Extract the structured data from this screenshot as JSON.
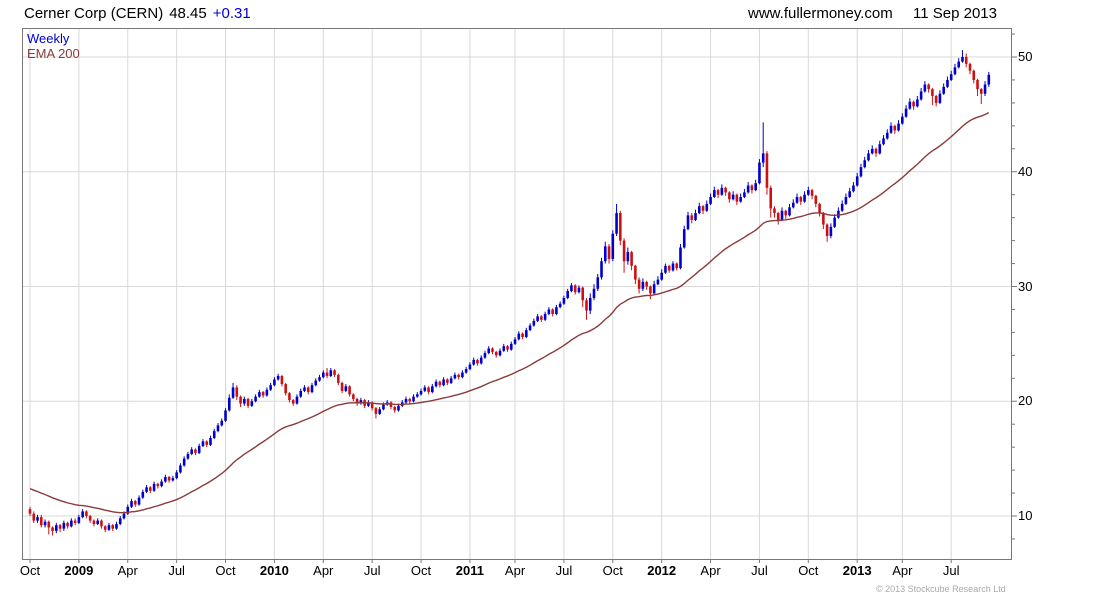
{
  "header": {
    "name": "Cerner Corp (CERN)",
    "price": "48.45",
    "change": "+0.31",
    "website": "www.fullermoney.com",
    "date": "11 Sep 2013"
  },
  "legend": {
    "weekly": "Weekly",
    "ema": "EMA 200"
  },
  "footer": {
    "copyright": "© 2013 Stockcube Research Ltd"
  },
  "colors": {
    "up": "#0000cd",
    "down": "#cc1111",
    "ema": "#8b3a3a",
    "grid": "#d8d8d8",
    "axis": "#777777",
    "accent_blue": "#0000cd",
    "copyright_gray": "#a9a9a9"
  },
  "chart_data": {
    "type": "candlestick",
    "title": "Cerner Corp (CERN)",
    "timeframe": "weekly",
    "range": "Oct 2008 - Sep 2013",
    "last_close": 48.45,
    "change": 0.31,
    "series": [
      {
        "name": "Weekly",
        "style": "candlestick"
      },
      {
        "name": "EMA 200",
        "style": "line"
      }
    ],
    "ylim": [
      6,
      52.5
    ],
    "y_ticks": [
      10,
      20,
      30,
      40,
      50
    ],
    "y_minor_step": 2,
    "ema_period_days": 200,
    "ema_seed": 12.5,
    "x_tick_labels": [
      "Oct",
      "2009",
      "Apr",
      "Jul",
      "Oct",
      "2010",
      "Apr",
      "Jul",
      "Oct",
      "2011",
      "Apr",
      "Jul",
      "Oct",
      "2012",
      "Apr",
      "Jul",
      "Oct",
      "2013",
      "Apr",
      "Jul"
    ],
    "x_tick_weeks": [
      0,
      13,
      26,
      39,
      52,
      65,
      78,
      91,
      104,
      117,
      129,
      142,
      155,
      168,
      181,
      194,
      207,
      220,
      232,
      245
    ],
    "candles": [
      [
        10.6,
        10.8,
        10.0,
        10.2
      ],
      [
        10.2,
        10.4,
        9.4,
        9.6
      ],
      [
        9.6,
        10.1,
        9.4,
        9.9
      ],
      [
        9.9,
        10.1,
        9.0,
        9.2
      ],
      [
        9.2,
        9.7,
        9.0,
        9.5
      ],
      [
        9.5,
        9.6,
        8.4,
        9.0
      ],
      [
        9.0,
        9.1,
        8.3,
        8.7
      ],
      [
        8.7,
        9.4,
        8.5,
        9.2
      ],
      [
        9.2,
        9.3,
        8.6,
        8.9
      ],
      [
        8.9,
        9.6,
        8.7,
        9.4
      ],
      [
        9.4,
        9.5,
        8.9,
        9.1
      ],
      [
        9.1,
        9.8,
        9.0,
        9.6
      ],
      [
        9.6,
        9.8,
        9.2,
        9.4
      ],
      [
        9.4,
        10.1,
        9.3,
        9.9
      ],
      [
        9.9,
        10.6,
        9.8,
        10.4
      ],
      [
        10.4,
        10.5,
        9.8,
        10.0
      ],
      [
        10.0,
        10.1,
        9.4,
        9.6
      ],
      [
        9.6,
        9.7,
        9.1,
        9.3
      ],
      [
        9.3,
        9.8,
        9.2,
        9.6
      ],
      [
        9.6,
        9.7,
        8.9,
        9.1
      ],
      [
        9.1,
        9.2,
        8.6,
        8.8
      ],
      [
        8.8,
        9.4,
        8.7,
        9.2
      ],
      [
        9.2,
        9.3,
        8.7,
        8.9
      ],
      [
        8.9,
        9.5,
        8.8,
        9.3
      ],
      [
        9.3,
        10.0,
        9.2,
        9.8
      ],
      [
        9.8,
        10.4,
        9.7,
        10.2
      ],
      [
        10.2,
        11.0,
        10.1,
        10.8
      ],
      [
        10.8,
        11.5,
        10.7,
        11.3
      ],
      [
        11.3,
        11.4,
        10.8,
        11.0
      ],
      [
        11.0,
        11.8,
        10.9,
        11.6
      ],
      [
        11.6,
        12.3,
        11.5,
        12.1
      ],
      [
        12.1,
        12.7,
        12.0,
        12.5
      ],
      [
        12.5,
        12.6,
        12.0,
        12.2
      ],
      [
        12.2,
        13.0,
        12.1,
        12.8
      ],
      [
        12.8,
        12.9,
        12.4,
        12.6
      ],
      [
        12.6,
        13.2,
        12.5,
        13.0
      ],
      [
        13.0,
        13.6,
        12.9,
        13.4
      ],
      [
        13.4,
        13.5,
        12.9,
        13.1
      ],
      [
        13.1,
        13.5,
        13.0,
        13.3
      ],
      [
        13.3,
        14.0,
        13.2,
        13.8
      ],
      [
        13.8,
        14.6,
        13.7,
        14.4
      ],
      [
        14.4,
        15.2,
        14.3,
        15.0
      ],
      [
        15.0,
        15.6,
        14.9,
        15.4
      ],
      [
        15.4,
        16.0,
        15.3,
        15.8
      ],
      [
        15.8,
        15.9,
        15.3,
        15.5
      ],
      [
        15.5,
        16.3,
        15.4,
        16.1
      ],
      [
        16.1,
        16.7,
        16.0,
        16.5
      ],
      [
        16.5,
        16.6,
        16.0,
        16.2
      ],
      [
        16.2,
        17.0,
        16.1,
        16.8
      ],
      [
        16.8,
        17.6,
        16.7,
        17.4
      ],
      [
        17.4,
        18.1,
        17.3,
        17.9
      ],
      [
        17.9,
        18.5,
        17.8,
        18.3
      ],
      [
        18.3,
        19.4,
        18.2,
        19.2
      ],
      [
        19.2,
        20.6,
        19.1,
        20.3
      ],
      [
        20.3,
        21.6,
        20.2,
        21.2
      ],
      [
        21.2,
        21.4,
        20.1,
        20.4
      ],
      [
        20.4,
        20.5,
        19.5,
        19.8
      ],
      [
        19.8,
        20.4,
        19.6,
        20.2
      ],
      [
        20.2,
        20.3,
        19.4,
        19.6
      ],
      [
        19.6,
        20.2,
        19.5,
        20.0
      ],
      [
        20.0,
        20.6,
        19.9,
        20.4
      ],
      [
        20.4,
        21.0,
        20.3,
        20.8
      ],
      [
        20.8,
        20.9,
        20.3,
        20.5
      ],
      [
        20.5,
        21.2,
        20.4,
        21.0
      ],
      [
        21.0,
        21.6,
        20.9,
        21.4
      ],
      [
        21.4,
        22.1,
        21.3,
        21.9
      ],
      [
        21.9,
        22.4,
        21.8,
        22.2
      ],
      [
        22.2,
        22.3,
        21.3,
        21.5
      ],
      [
        21.5,
        21.6,
        20.5,
        20.7
      ],
      [
        20.7,
        20.8,
        19.9,
        20.1
      ],
      [
        20.1,
        20.2,
        19.6,
        19.8
      ],
      [
        19.8,
        20.6,
        19.7,
        20.4
      ],
      [
        20.4,
        21.1,
        20.3,
        20.9
      ],
      [
        20.9,
        21.4,
        20.8,
        21.2
      ],
      [
        21.2,
        21.3,
        20.6,
        20.8
      ],
      [
        20.8,
        21.6,
        20.7,
        21.4
      ],
      [
        21.4,
        22.0,
        21.3,
        21.8
      ],
      [
        21.8,
        22.3,
        21.7,
        22.1
      ],
      [
        22.1,
        22.7,
        22.0,
        22.5
      ],
      [
        22.5,
        22.9,
        22.0,
        22.2
      ],
      [
        22.2,
        22.9,
        22.1,
        22.7
      ],
      [
        22.7,
        22.8,
        22.1,
        22.3
      ],
      [
        22.3,
        22.4,
        21.4,
        21.6
      ],
      [
        21.6,
        21.7,
        20.7,
        20.9
      ],
      [
        20.9,
        21.5,
        20.8,
        21.3
      ],
      [
        21.3,
        21.4,
        20.4,
        20.6
      ],
      [
        20.6,
        20.7,
        20.0,
        20.2
      ],
      [
        20.2,
        20.3,
        19.6,
        19.8
      ],
      [
        19.8,
        20.3,
        19.7,
        20.1
      ],
      [
        20.1,
        20.2,
        19.4,
        19.6
      ],
      [
        19.6,
        20.1,
        19.5,
        19.9
      ],
      [
        19.9,
        20.0,
        19.2,
        19.4
      ],
      [
        19.4,
        19.5,
        18.5,
        18.9
      ],
      [
        18.9,
        19.5,
        18.8,
        19.3
      ],
      [
        19.3,
        19.9,
        19.2,
        19.7
      ],
      [
        19.7,
        20.1,
        19.6,
        19.9
      ],
      [
        19.9,
        20.0,
        19.3,
        19.5
      ],
      [
        19.5,
        19.6,
        19.0,
        19.2
      ],
      [
        19.2,
        19.8,
        19.1,
        19.6
      ],
      [
        19.6,
        20.1,
        19.5,
        19.9
      ],
      [
        19.9,
        20.4,
        19.8,
        20.2
      ],
      [
        20.2,
        20.3,
        19.8,
        20.0
      ],
      [
        20.0,
        20.6,
        19.9,
        20.4
      ],
      [
        20.4,
        20.8,
        20.3,
        20.6
      ],
      [
        20.6,
        21.1,
        20.5,
        20.9
      ],
      [
        20.9,
        21.4,
        20.8,
        21.2
      ],
      [
        21.2,
        21.3,
        20.6,
        20.8
      ],
      [
        20.8,
        21.5,
        20.7,
        21.3
      ],
      [
        21.3,
        21.9,
        21.2,
        21.7
      ],
      [
        21.7,
        21.8,
        21.2,
        21.4
      ],
      [
        21.4,
        22.1,
        21.3,
        21.9
      ],
      [
        21.9,
        22.0,
        21.4,
        21.6
      ],
      [
        21.6,
        22.2,
        21.5,
        22.0
      ],
      [
        22.0,
        22.5,
        21.9,
        22.3
      ],
      [
        22.3,
        22.4,
        21.9,
        22.1
      ],
      [
        22.1,
        22.7,
        22.0,
        22.5
      ],
      [
        22.5,
        23.0,
        22.4,
        22.8
      ],
      [
        22.8,
        23.4,
        22.7,
        23.2
      ],
      [
        23.2,
        23.8,
        23.1,
        23.6
      ],
      [
        23.6,
        23.7,
        23.1,
        23.3
      ],
      [
        23.3,
        24.0,
        23.2,
        23.8
      ],
      [
        23.8,
        24.4,
        23.7,
        24.2
      ],
      [
        24.2,
        24.8,
        24.1,
        24.6
      ],
      [
        24.6,
        24.7,
        24.1,
        24.3
      ],
      [
        24.3,
        24.4,
        23.8,
        24.0
      ],
      [
        24.0,
        24.6,
        23.9,
        24.4
      ],
      [
        24.4,
        25.0,
        24.3,
        24.8
      ],
      [
        24.8,
        24.9,
        24.3,
        24.5
      ],
      [
        24.5,
        25.2,
        24.4,
        25.0
      ],
      [
        25.0,
        25.6,
        24.9,
        25.4
      ],
      [
        25.4,
        26.1,
        25.3,
        25.9
      ],
      [
        25.9,
        26.0,
        25.4,
        25.6
      ],
      [
        25.6,
        26.4,
        25.5,
        26.2
      ],
      [
        26.2,
        26.8,
        26.1,
        26.6
      ],
      [
        26.6,
        27.2,
        26.5,
        27.0
      ],
      [
        27.0,
        27.6,
        26.9,
        27.4
      ],
      [
        27.4,
        27.5,
        26.9,
        27.1
      ],
      [
        27.1,
        27.8,
        27.0,
        27.6
      ],
      [
        27.6,
        28.2,
        27.5,
        28.0
      ],
      [
        28.0,
        28.1,
        27.4,
        27.6
      ],
      [
        27.6,
        28.4,
        27.5,
        28.2
      ],
      [
        28.2,
        28.7,
        28.1,
        28.5
      ],
      [
        28.5,
        29.2,
        28.4,
        29.0
      ],
      [
        29.0,
        29.8,
        28.9,
        29.6
      ],
      [
        29.6,
        30.3,
        29.5,
        30.1
      ],
      [
        30.1,
        30.2,
        29.3,
        29.5
      ],
      [
        29.5,
        30.1,
        29.4,
        29.9
      ],
      [
        29.9,
        30.0,
        28.2,
        28.8
      ],
      [
        28.8,
        29.0,
        27.1,
        27.9
      ],
      [
        27.9,
        29.4,
        27.6,
        29.0
      ],
      [
        29.0,
        30.2,
        28.8,
        29.8
      ],
      [
        29.8,
        31.1,
        29.6,
        30.8
      ],
      [
        30.8,
        32.5,
        30.6,
        32.2
      ],
      [
        32.2,
        33.9,
        32.0,
        33.5
      ],
      [
        33.5,
        33.7,
        32.0,
        32.4
      ],
      [
        32.4,
        34.9,
        32.2,
        34.6
      ],
      [
        34.6,
        37.2,
        34.4,
        36.4
      ],
      [
        36.4,
        36.6,
        33.6,
        34.0
      ],
      [
        34.0,
        34.2,
        31.2,
        32.2
      ],
      [
        32.2,
        33.4,
        31.9,
        33.0
      ],
      [
        33.0,
        33.1,
        31.4,
        31.8
      ],
      [
        31.8,
        31.9,
        30.2,
        30.6
      ],
      [
        30.6,
        30.8,
        29.4,
        29.8
      ],
      [
        29.8,
        30.7,
        29.6,
        30.4
      ],
      [
        30.4,
        30.5,
        29.7,
        30.0
      ],
      [
        30.0,
        30.1,
        28.9,
        29.4
      ],
      [
        29.4,
        30.5,
        29.3,
        30.2
      ],
      [
        30.2,
        30.9,
        30.1,
        30.6
      ],
      [
        30.6,
        31.5,
        30.5,
        31.2
      ],
      [
        31.2,
        32.0,
        31.1,
        31.8
      ],
      [
        31.8,
        31.9,
        31.2,
        31.4
      ],
      [
        31.4,
        32.2,
        31.3,
        32.0
      ],
      [
        32.0,
        32.1,
        31.4,
        31.6
      ],
      [
        31.6,
        33.7,
        31.5,
        33.4
      ],
      [
        33.4,
        35.3,
        33.3,
        35.0
      ],
      [
        35.0,
        36.5,
        34.9,
        36.2
      ],
      [
        36.2,
        36.4,
        35.5,
        35.8
      ],
      [
        35.8,
        36.7,
        35.7,
        36.4
      ],
      [
        36.4,
        37.3,
        36.3,
        37.0
      ],
      [
        37.0,
        37.1,
        36.3,
        36.6
      ],
      [
        36.6,
        37.5,
        36.5,
        37.2
      ],
      [
        37.2,
        38.1,
        37.1,
        37.8
      ],
      [
        37.8,
        38.7,
        37.7,
        38.4
      ],
      [
        38.4,
        38.5,
        37.7,
        38.0
      ],
      [
        38.0,
        38.9,
        37.9,
        38.6
      ],
      [
        38.6,
        38.7,
        37.9,
        38.2
      ],
      [
        38.2,
        38.3,
        37.3,
        37.6
      ],
      [
        37.6,
        38.3,
        37.5,
        38.0
      ],
      [
        38.0,
        38.1,
        37.1,
        37.4
      ],
      [
        37.4,
        38.1,
        37.3,
        37.8
      ],
      [
        37.8,
        38.5,
        37.7,
        38.2
      ],
      [
        38.2,
        39.1,
        38.1,
        38.8
      ],
      [
        38.8,
        38.9,
        38.1,
        38.4
      ],
      [
        38.4,
        39.3,
        38.3,
        39.0
      ],
      [
        39.0,
        41.1,
        38.9,
        40.8
      ],
      [
        40.8,
        44.3,
        40.4,
        41.6
      ],
      [
        41.6,
        41.8,
        38.0,
        38.6
      ],
      [
        38.6,
        38.8,
        36.0,
        36.8
      ],
      [
        36.8,
        37.0,
        36.0,
        36.4
      ],
      [
        36.4,
        36.5,
        35.4,
        35.8
      ],
      [
        35.8,
        36.9,
        35.7,
        36.6
      ],
      [
        36.6,
        36.7,
        35.9,
        36.2
      ],
      [
        36.2,
        37.2,
        36.1,
        36.9
      ],
      [
        36.9,
        37.6,
        36.8,
        37.3
      ],
      [
        37.3,
        38.1,
        37.2,
        37.8
      ],
      [
        37.8,
        37.9,
        37.1,
        37.4
      ],
      [
        37.4,
        38.3,
        37.3,
        38.0
      ],
      [
        38.0,
        38.7,
        37.9,
        38.4
      ],
      [
        38.4,
        38.5,
        37.6,
        37.9
      ],
      [
        37.9,
        38.0,
        36.9,
        37.2
      ],
      [
        37.2,
        37.3,
        36.1,
        36.4
      ],
      [
        36.4,
        36.5,
        35.0,
        35.4
      ],
      [
        35.4,
        35.5,
        33.9,
        34.4
      ],
      [
        34.4,
        35.5,
        34.2,
        35.2
      ],
      [
        35.2,
        36.3,
        35.1,
        36.0
      ],
      [
        36.0,
        36.9,
        35.9,
        36.6
      ],
      [
        36.6,
        37.5,
        36.5,
        37.2
      ],
      [
        37.2,
        38.1,
        37.1,
        37.8
      ],
      [
        37.8,
        38.6,
        37.7,
        38.3
      ],
      [
        38.3,
        39.1,
        38.2,
        38.8
      ],
      [
        38.8,
        39.9,
        38.7,
        39.6
      ],
      [
        39.6,
        40.7,
        39.5,
        40.4
      ],
      [
        40.4,
        41.3,
        40.3,
        41.0
      ],
      [
        41.0,
        41.9,
        40.9,
        41.6
      ],
      [
        41.6,
        42.3,
        41.5,
        42.0
      ],
      [
        42.0,
        42.1,
        41.3,
        41.6
      ],
      [
        41.6,
        42.7,
        41.5,
        42.4
      ],
      [
        42.4,
        43.2,
        42.3,
        42.9
      ],
      [
        42.9,
        43.7,
        42.8,
        43.4
      ],
      [
        43.4,
        44.3,
        43.3,
        44.0
      ],
      [
        44.0,
        44.1,
        43.3,
        43.6
      ],
      [
        43.6,
        44.5,
        43.5,
        44.2
      ],
      [
        44.2,
        45.1,
        44.1,
        44.8
      ],
      [
        44.8,
        45.8,
        44.7,
        45.5
      ],
      [
        45.5,
        46.4,
        45.4,
        46.1
      ],
      [
        46.1,
        46.2,
        45.4,
        45.7
      ],
      [
        45.7,
        46.6,
        45.6,
        46.3
      ],
      [
        46.3,
        47.3,
        46.2,
        47.0
      ],
      [
        47.0,
        47.9,
        46.9,
        47.6
      ],
      [
        47.6,
        47.7,
        46.9,
        47.2
      ],
      [
        47.2,
        47.3,
        45.8,
        46.6
      ],
      [
        46.6,
        46.7,
        45.7,
        46.0
      ],
      [
        46.0,
        47.1,
        45.9,
        46.8
      ],
      [
        46.8,
        47.7,
        46.7,
        47.4
      ],
      [
        47.4,
        48.3,
        47.3,
        48.0
      ],
      [
        48.0,
        48.8,
        47.9,
        48.5
      ],
      [
        48.5,
        49.4,
        48.4,
        49.1
      ],
      [
        49.1,
        49.9,
        49.0,
        49.6
      ],
      [
        49.6,
        50.6,
        49.5,
        50.0
      ],
      [
        50.0,
        50.3,
        49.1,
        49.4
      ],
      [
        49.4,
        49.5,
        48.5,
        48.8
      ],
      [
        48.8,
        48.9,
        47.7,
        48.0
      ],
      [
        48.0,
        48.1,
        46.6,
        47.2
      ],
      [
        47.2,
        47.3,
        45.9,
        46.8
      ],
      [
        46.8,
        47.9,
        46.6,
        47.6
      ],
      [
        47.6,
        48.7,
        47.4,
        48.45
      ]
    ]
  }
}
